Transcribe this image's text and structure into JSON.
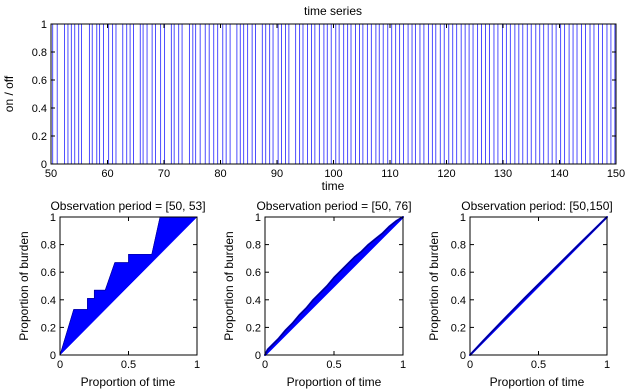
{
  "chart_data": [
    {
      "type": "line",
      "title": "time series",
      "xlabel": "time",
      "ylabel": "on / off",
      "xlim": [
        50,
        150
      ],
      "ylim": [
        0,
        1
      ],
      "xticks": [
        50,
        60,
        70,
        80,
        90,
        100,
        110,
        120,
        130,
        140,
        150
      ],
      "yticks": [
        0,
        0.2,
        0.4,
        0.6,
        0.8,
        1
      ],
      "xtick_labels": [
        "50",
        "60",
        "70",
        "80",
        "90",
        "100",
        "110",
        "120",
        "130",
        "140",
        "150"
      ],
      "ytick_labels": [
        "0",
        "0.2",
        "0.4",
        "0.6",
        "0.8",
        "1"
      ],
      "grid": false,
      "line_color": "#3a3aff",
      "spike_times": [
        50.3,
        51.1,
        52.4,
        53.0,
        53.6,
        54.2,
        54.9,
        55.4,
        56.8,
        57.3,
        58.1,
        58.6,
        59.3,
        60.2,
        60.9,
        61.5,
        62.7,
        63.4,
        64.0,
        64.6,
        65.8,
        66.3,
        67.0,
        67.9,
        68.5,
        69.4,
        70.1,
        71.3,
        71.8,
        72.6,
        73.2,
        74.5,
        75.1,
        75.6,
        76.4,
        77.3,
        78.0,
        78.8,
        79.5,
        80.4,
        81.0,
        81.7,
        82.9,
        83.5,
        84.1,
        84.8,
        85.6,
        86.2,
        87.4,
        88.0,
        88.7,
        89.3,
        90.2,
        90.8,
        91.5,
        92.1,
        93.3,
        94.0,
        94.6,
        95.4,
        96.1,
        96.7,
        97.5,
        98.3,
        98.9,
        99.6,
        100.4,
        101.0,
        101.8,
        102.5,
        103.1,
        103.9,
        104.6,
        105.2,
        106.0,
        106.7,
        107.5,
        108.1,
        108.8,
        109.6,
        110.3,
        111.0,
        111.7,
        112.4,
        113.2,
        113.9,
        114.5,
        115.3,
        116.0,
        116.8,
        117.5,
        118.1,
        118.9,
        119.6,
        120.4,
        121.1,
        121.8,
        122.6,
        123.3,
        124.0,
        124.7,
        125.5,
        126.2,
        126.9,
        127.6,
        128.4,
        129.1,
        129.9,
        130.6,
        131.3,
        132.1,
        132.8,
        133.5,
        134.3,
        135.0,
        135.8,
        136.5,
        137.2,
        138.0,
        138.7,
        139.4,
        140.2,
        140.9,
        141.7,
        142.4,
        143.1,
        143.9,
        144.6,
        145.4,
        146.1,
        146.9,
        147.6,
        148.4,
        149.1,
        149.8
      ]
    },
    {
      "type": "area",
      "title": "Observation period = [50, 53]",
      "xlabel": "Proportion of time",
      "ylabel": "Proportion of burden",
      "xlim": [
        0,
        1
      ],
      "ylim": [
        0,
        1
      ],
      "xticks": [
        0,
        0.5,
        1
      ],
      "xtick_labels": [
        "0",
        "0.5",
        "1"
      ],
      "yticks": [
        0,
        0.2,
        0.4,
        0.6,
        0.8,
        1
      ],
      "ytick_labels": [
        "0",
        "0.2",
        "0.4",
        "0.6",
        "0.8",
        "1"
      ],
      "fill_color": "#0000ff",
      "curve": [
        [
          0,
          0
        ],
        [
          0.1,
          0.33
        ],
        [
          0.2,
          0.33
        ],
        [
          0.2,
          0.41
        ],
        [
          0.25,
          0.41
        ],
        [
          0.25,
          0.47
        ],
        [
          0.33,
          0.47
        ],
        [
          0.4,
          0.67
        ],
        [
          0.5,
          0.67
        ],
        [
          0.5,
          0.73
        ],
        [
          0.67,
          0.73
        ],
        [
          0.73,
          1
        ],
        [
          1,
          1
        ]
      ]
    },
    {
      "type": "area",
      "title": "Observation period = [50, 76]",
      "xlabel": "Proportion of time",
      "ylabel": "Proportion of burden",
      "xlim": [
        0,
        1
      ],
      "ylim": [
        0,
        1
      ],
      "xticks": [
        0,
        0.5,
        1
      ],
      "xtick_labels": [
        "0",
        "0.5",
        "1"
      ],
      "yticks": [
        0,
        0.2,
        0.4,
        0.6,
        0.8,
        1
      ],
      "ytick_labels": [
        "0",
        "0.2",
        "0.4",
        "0.6",
        "0.8",
        "1"
      ],
      "fill_color": "#0000ff",
      "curve": [
        [
          0,
          0
        ],
        [
          0.02,
          0.04
        ],
        [
          0.05,
          0.07
        ],
        [
          0.1,
          0.12
        ],
        [
          0.15,
          0.18
        ],
        [
          0.2,
          0.23
        ],
        [
          0.25,
          0.29
        ],
        [
          0.3,
          0.34
        ],
        [
          0.35,
          0.4
        ],
        [
          0.4,
          0.45
        ],
        [
          0.45,
          0.5
        ],
        [
          0.5,
          0.56
        ],
        [
          0.55,
          0.61
        ],
        [
          0.6,
          0.66
        ],
        [
          0.65,
          0.71
        ],
        [
          0.7,
          0.75
        ],
        [
          0.75,
          0.8
        ],
        [
          0.8,
          0.84
        ],
        [
          0.85,
          0.88
        ],
        [
          0.9,
          0.93
        ],
        [
          0.95,
          0.97
        ],
        [
          1,
          1
        ]
      ]
    },
    {
      "type": "area",
      "title": "Observation period: [50,150]",
      "xlabel": "Proportion of time",
      "ylabel": "Proportion of burden",
      "xlim": [
        0,
        1
      ],
      "ylim": [
        0,
        1
      ],
      "xticks": [
        0,
        0.5,
        1
      ],
      "xtick_labels": [
        "0",
        "0.5",
        "1"
      ],
      "yticks": [
        0,
        0.2,
        0.4,
        0.6,
        0.8,
        1
      ],
      "ytick_labels": [
        "0",
        "0.2",
        "0.4",
        "0.6",
        "0.8",
        "1"
      ],
      "fill_color": "#0000ff",
      "curve": [
        [
          0,
          0
        ],
        [
          0.1,
          0.106
        ],
        [
          0.2,
          0.21
        ],
        [
          0.3,
          0.312
        ],
        [
          0.4,
          0.413
        ],
        [
          0.5,
          0.512
        ],
        [
          0.6,
          0.61
        ],
        [
          0.7,
          0.708
        ],
        [
          0.8,
          0.806
        ],
        [
          0.9,
          0.903
        ],
        [
          1,
          1
        ]
      ]
    }
  ]
}
